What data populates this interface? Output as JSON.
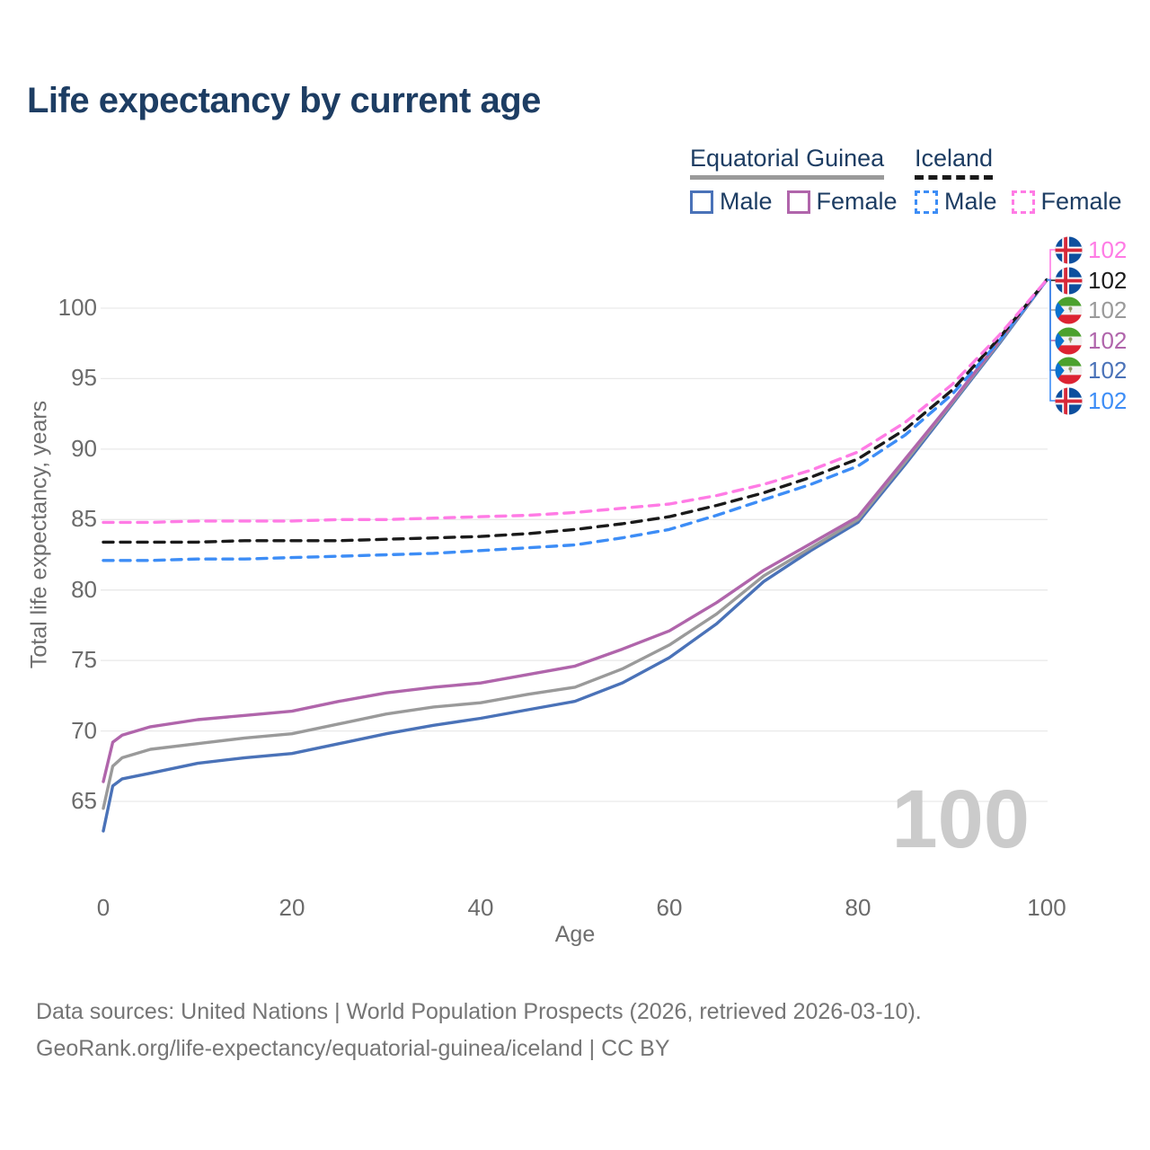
{
  "title": "Life expectancy by current age",
  "watermark": "100",
  "legend": {
    "groups": [
      {
        "label": "Equatorial Guinea",
        "style": "solid",
        "color": "#9a9a9a",
        "items": [
          {
            "label": "Male",
            "color": "#4a72b8"
          },
          {
            "label": "Female",
            "color": "#b065ab"
          }
        ]
      },
      {
        "label": "Iceland",
        "style": "dashed",
        "color": "#1a1a1a",
        "items": [
          {
            "label": "Male",
            "color": "#3d8df6"
          },
          {
            "label": "Female",
            "color": "#ff7be5"
          }
        ]
      }
    ]
  },
  "end_labels": [
    {
      "id": "iceland-female",
      "flag": "iceland",
      "value": "102",
      "color": "#ff7be5"
    },
    {
      "id": "iceland-both",
      "flag": "iceland",
      "value": "102",
      "color": "#1a1a1a"
    },
    {
      "id": "equatorial-guinea-both",
      "flag": "equatorial-guinea",
      "value": "102",
      "color": "#9a9a9a"
    },
    {
      "id": "equatorial-guinea-female",
      "flag": "equatorial-guinea",
      "value": "102",
      "color": "#b065ab"
    },
    {
      "id": "equatorial-guinea-male",
      "flag": "equatorial-guinea",
      "value": "102",
      "color": "#4a72b8"
    },
    {
      "id": "iceland-male",
      "flag": "iceland",
      "value": "102",
      "color": "#3d8df6"
    }
  ],
  "chart_data": {
    "type": "line",
    "title": "Life expectancy by current age",
    "xlabel": "Age",
    "ylabel": "Total life expectancy, years",
    "xlim": [
      0,
      100
    ],
    "ylim": [
      62,
      103
    ],
    "x_ticks": [
      0,
      20,
      40,
      60,
      80,
      100
    ],
    "y_ticks": [
      65,
      70,
      75,
      80,
      85,
      90,
      95,
      100
    ],
    "grid": "horizontal",
    "legend_position": "top-right",
    "series": [
      {
        "id": "eg-male",
        "name": "Equatorial Guinea — Male",
        "country": "Equatorial Guinea",
        "sex": "Male",
        "style": "solid",
        "color": "#4a72b8",
        "end_value": 102,
        "points": [
          [
            0,
            62.9
          ],
          [
            1,
            66.1
          ],
          [
            2,
            66.6
          ],
          [
            5,
            67.0
          ],
          [
            10,
            67.7
          ],
          [
            15,
            68.1
          ],
          [
            20,
            68.4
          ],
          [
            25,
            69.1
          ],
          [
            30,
            69.8
          ],
          [
            35,
            70.4
          ],
          [
            40,
            70.9
          ],
          [
            45,
            71.5
          ],
          [
            50,
            72.1
          ],
          [
            55,
            73.4
          ],
          [
            60,
            75.2
          ],
          [
            65,
            77.6
          ],
          [
            70,
            80.6
          ],
          [
            75,
            82.8
          ],
          [
            80,
            84.8
          ],
          [
            85,
            88.9
          ],
          [
            90,
            93.2
          ],
          [
            95,
            97.5
          ],
          [
            100,
            102
          ]
        ]
      },
      {
        "id": "eg-both",
        "name": "Equatorial Guinea — Both sexes",
        "country": "Equatorial Guinea",
        "sex": "Both",
        "style": "solid",
        "color": "#9a9a9a",
        "end_value": 102,
        "points": [
          [
            0,
            64.5
          ],
          [
            1,
            67.5
          ],
          [
            2,
            68.1
          ],
          [
            5,
            68.7
          ],
          [
            10,
            69.1
          ],
          [
            15,
            69.5
          ],
          [
            20,
            69.8
          ],
          [
            25,
            70.5
          ],
          [
            30,
            71.2
          ],
          [
            35,
            71.7
          ],
          [
            40,
            72.0
          ],
          [
            45,
            72.6
          ],
          [
            50,
            73.1
          ],
          [
            55,
            74.4
          ],
          [
            60,
            76.1
          ],
          [
            65,
            78.3
          ],
          [
            70,
            81.0
          ],
          [
            75,
            83.0
          ],
          [
            80,
            85.0
          ],
          [
            85,
            89.1
          ],
          [
            90,
            93.3
          ],
          [
            95,
            97.6
          ],
          [
            100,
            102
          ]
        ]
      },
      {
        "id": "eg-female",
        "name": "Equatorial Guinea — Female",
        "country": "Equatorial Guinea",
        "sex": "Female",
        "style": "solid",
        "color": "#b065ab",
        "end_value": 102,
        "points": [
          [
            0,
            66.4
          ],
          [
            1,
            69.2
          ],
          [
            2,
            69.7
          ],
          [
            5,
            70.3
          ],
          [
            10,
            70.8
          ],
          [
            15,
            71.1
          ],
          [
            20,
            71.4
          ],
          [
            25,
            72.1
          ],
          [
            30,
            72.7
          ],
          [
            35,
            73.1
          ],
          [
            40,
            73.4
          ],
          [
            45,
            74.0
          ],
          [
            50,
            74.6
          ],
          [
            55,
            75.8
          ],
          [
            60,
            77.1
          ],
          [
            65,
            79.1
          ],
          [
            70,
            81.4
          ],
          [
            75,
            83.3
          ],
          [
            80,
            85.2
          ],
          [
            85,
            89.3
          ],
          [
            90,
            93.4
          ],
          [
            95,
            97.7
          ],
          [
            100,
            102
          ]
        ]
      },
      {
        "id": "iceland-male",
        "name": "Iceland — Male",
        "country": "Iceland",
        "sex": "Male",
        "style": "dashed",
        "color": "#3d8df6",
        "end_value": 102,
        "points": [
          [
            0,
            82.1
          ],
          [
            5,
            82.1
          ],
          [
            10,
            82.2
          ],
          [
            15,
            82.2
          ],
          [
            20,
            82.3
          ],
          [
            25,
            82.4
          ],
          [
            30,
            82.5
          ],
          [
            35,
            82.6
          ],
          [
            40,
            82.8
          ],
          [
            45,
            83.0
          ],
          [
            50,
            83.2
          ],
          [
            55,
            83.7
          ],
          [
            60,
            84.3
          ],
          [
            65,
            85.3
          ],
          [
            70,
            86.4
          ],
          [
            75,
            87.5
          ],
          [
            80,
            88.8
          ],
          [
            85,
            91.0
          ],
          [
            90,
            93.9
          ],
          [
            95,
            97.7
          ],
          [
            100,
            102
          ]
        ]
      },
      {
        "id": "iceland-both",
        "name": "Iceland — Both sexes",
        "country": "Iceland",
        "sex": "Both",
        "style": "dashed",
        "color": "#1a1a1a",
        "end_value": 102,
        "points": [
          [
            0,
            83.4
          ],
          [
            5,
            83.4
          ],
          [
            10,
            83.4
          ],
          [
            15,
            83.5
          ],
          [
            20,
            83.5
          ],
          [
            25,
            83.5
          ],
          [
            30,
            83.6
          ],
          [
            35,
            83.7
          ],
          [
            40,
            83.8
          ],
          [
            45,
            84.0
          ],
          [
            50,
            84.3
          ],
          [
            55,
            84.7
          ],
          [
            60,
            85.2
          ],
          [
            65,
            86.0
          ],
          [
            70,
            86.9
          ],
          [
            75,
            88.0
          ],
          [
            80,
            89.3
          ],
          [
            85,
            91.4
          ],
          [
            90,
            94.2
          ],
          [
            95,
            97.9
          ],
          [
            100,
            102
          ]
        ]
      },
      {
        "id": "iceland-female",
        "name": "Iceland — Female",
        "country": "Iceland",
        "sex": "Female",
        "style": "dashed",
        "color": "#ff7be5",
        "end_value": 102,
        "points": [
          [
            0,
            84.8
          ],
          [
            5,
            84.8
          ],
          [
            10,
            84.9
          ],
          [
            15,
            84.9
          ],
          [
            20,
            84.9
          ],
          [
            25,
            85.0
          ],
          [
            30,
            85.0
          ],
          [
            35,
            85.1
          ],
          [
            40,
            85.2
          ],
          [
            45,
            85.3
          ],
          [
            50,
            85.5
          ],
          [
            55,
            85.8
          ],
          [
            60,
            86.1
          ],
          [
            65,
            86.7
          ],
          [
            70,
            87.5
          ],
          [
            75,
            88.5
          ],
          [
            80,
            89.8
          ],
          [
            85,
            91.9
          ],
          [
            90,
            94.6
          ],
          [
            95,
            98.1
          ],
          [
            100,
            102
          ]
        ]
      }
    ]
  },
  "footer": {
    "line1": "Data sources: United Nations | World Population Prospects (2026, retrieved 2026-03-10).",
    "line2": "GeoRank.org/life-expectancy/equatorial-guinea/iceland | CC BY"
  }
}
